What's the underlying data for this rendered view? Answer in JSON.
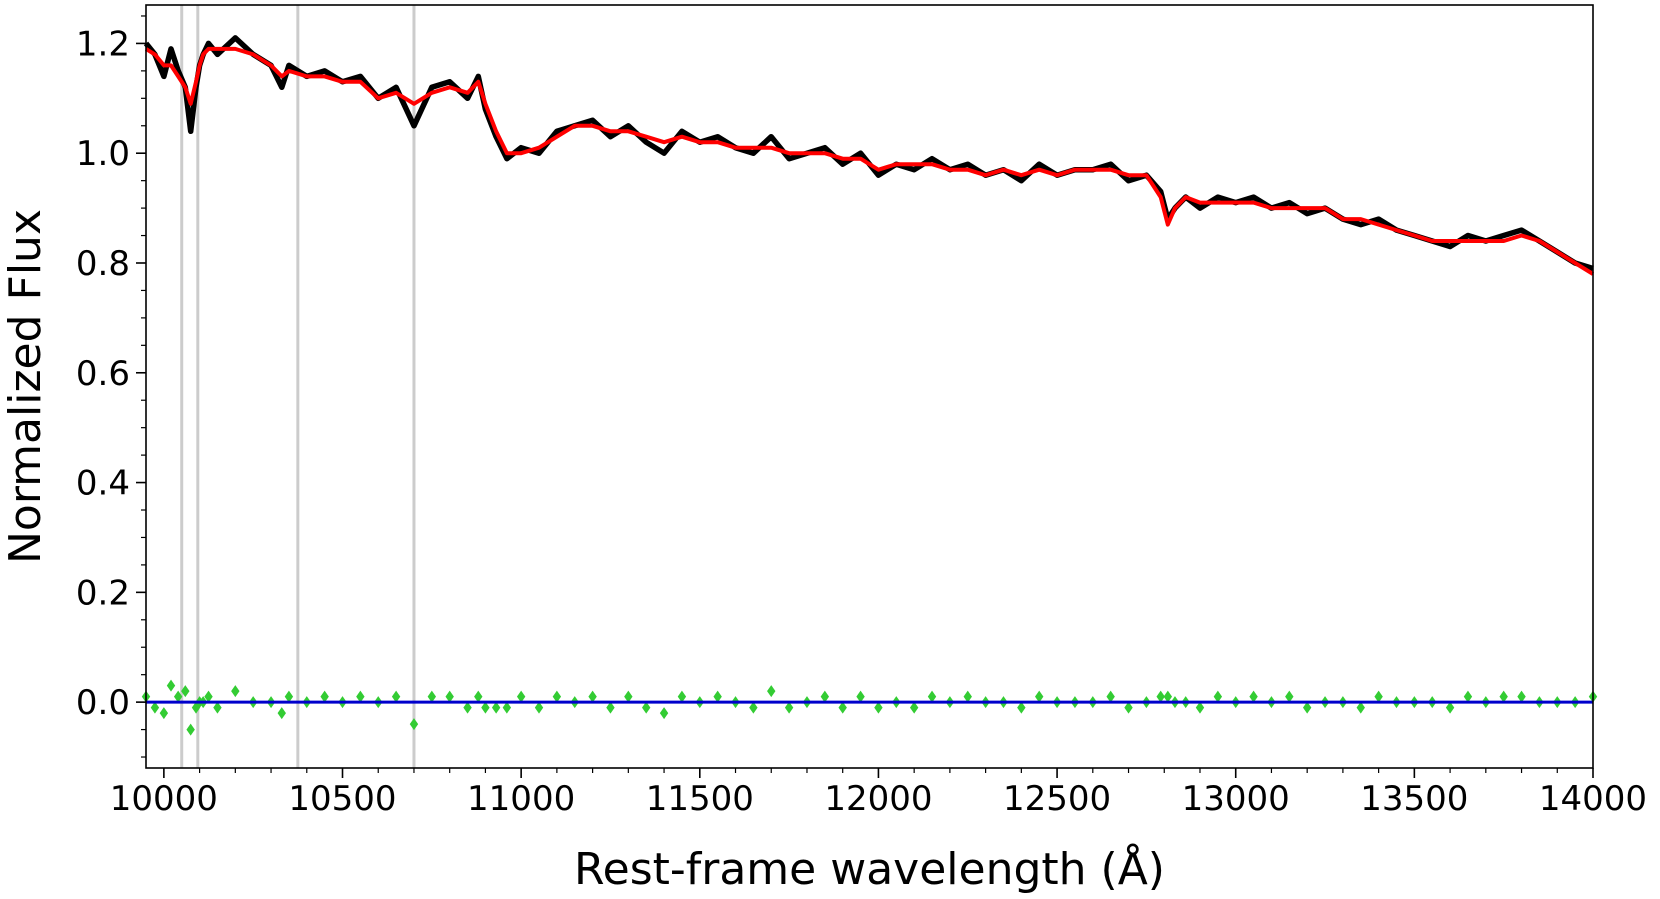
{
  "chart_data": {
    "type": "line",
    "xlabel": "Rest-frame wavelength (Å)",
    "ylabel": "Normalized Flux",
    "xlim": [
      9950,
      14000
    ],
    "ylim": [
      -0.12,
      1.27
    ],
    "x_ticks": [
      10000,
      10500,
      11000,
      11500,
      12000,
      12500,
      13000,
      13500,
      14000
    ],
    "x_tick_labels": [
      "10000",
      "10500",
      "11000",
      "11500",
      "12000",
      "12500",
      "13000",
      "13500",
      "14000"
    ],
    "y_ticks": [
      0.0,
      0.2,
      0.4,
      0.6,
      0.8,
      1.0,
      1.2
    ],
    "y_tick_labels": [
      "0.0",
      "0.2",
      "0.4",
      "0.6",
      "0.8",
      "1.0",
      "1.2"
    ],
    "grid": false,
    "vertical_lines": [
      10050,
      10095,
      10375,
      10700
    ],
    "series": [
      {
        "role": "observed",
        "color": "#000000",
        "style": "line",
        "x": [
          9950,
          9975,
          10000,
          10020,
          10040,
          10060,
          10075,
          10090,
          10100,
          10110,
          10125,
          10150,
          10200,
          10250,
          10300,
          10330,
          10350,
          10400,
          10450,
          10500,
          10550,
          10600,
          10650,
          10700,
          10750,
          10800,
          10850,
          10880,
          10900,
          10930,
          10960,
          11000,
          11050,
          11100,
          11150,
          11200,
          11250,
          11300,
          11350,
          11400,
          11450,
          11500,
          11550,
          11600,
          11650,
          11700,
          11750,
          11800,
          11850,
          11900,
          11950,
          12000,
          12050,
          12100,
          12150,
          12200,
          12250,
          12300,
          12350,
          12400,
          12450,
          12500,
          12550,
          12600,
          12650,
          12700,
          12750,
          12790,
          12810,
          12830,
          12860,
          12900,
          12950,
          13000,
          13050,
          13100,
          13150,
          13200,
          13250,
          13300,
          13350,
          13400,
          13450,
          13500,
          13550,
          13600,
          13650,
          13700,
          13750,
          13800,
          13850,
          13900,
          13950,
          14000
        ],
        "y": [
          1.2,
          1.18,
          1.14,
          1.19,
          1.15,
          1.12,
          1.04,
          1.12,
          1.16,
          1.18,
          1.2,
          1.18,
          1.21,
          1.18,
          1.16,
          1.12,
          1.16,
          1.14,
          1.15,
          1.13,
          1.14,
          1.1,
          1.12,
          1.05,
          1.12,
          1.13,
          1.1,
          1.14,
          1.08,
          1.03,
          0.99,
          1.01,
          1.0,
          1.04,
          1.05,
          1.06,
          1.03,
          1.05,
          1.02,
          1.0,
          1.04,
          1.02,
          1.03,
          1.01,
          1.0,
          1.03,
          0.99,
          1.0,
          1.01,
          0.98,
          1.0,
          0.96,
          0.98,
          0.97,
          0.99,
          0.97,
          0.98,
          0.96,
          0.97,
          0.95,
          0.98,
          0.96,
          0.97,
          0.97,
          0.98,
          0.95,
          0.96,
          0.93,
          0.88,
          0.9,
          0.92,
          0.9,
          0.92,
          0.91,
          0.92,
          0.9,
          0.91,
          0.89,
          0.9,
          0.88,
          0.87,
          0.88,
          0.86,
          0.85,
          0.84,
          0.83,
          0.85,
          0.84,
          0.85,
          0.86,
          0.84,
          0.82,
          0.8,
          0.79
        ]
      },
      {
        "role": "model",
        "color": "#ff0000",
        "style": "line",
        "x": [
          9950,
          9975,
          10000,
          10020,
          10040,
          10060,
          10075,
          10090,
          10100,
          10110,
          10125,
          10150,
          10200,
          10250,
          10300,
          10330,
          10350,
          10400,
          10450,
          10500,
          10550,
          10600,
          10650,
          10700,
          10750,
          10800,
          10850,
          10880,
          10900,
          10930,
          10960,
          11000,
          11050,
          11100,
          11150,
          11200,
          11250,
          11300,
          11350,
          11400,
          11450,
          11500,
          11550,
          11600,
          11650,
          11700,
          11750,
          11800,
          11850,
          11900,
          11950,
          12000,
          12050,
          12100,
          12150,
          12200,
          12250,
          12300,
          12350,
          12400,
          12450,
          12500,
          12550,
          12600,
          12650,
          12700,
          12750,
          12790,
          12810,
          12830,
          12860,
          12900,
          12950,
          13000,
          13050,
          13100,
          13150,
          13200,
          13250,
          13300,
          13350,
          13400,
          13450,
          13500,
          13550,
          13600,
          13650,
          13700,
          13750,
          13800,
          13850,
          13900,
          13950,
          14000
        ],
        "y": [
          1.19,
          1.18,
          1.16,
          1.16,
          1.14,
          1.12,
          1.09,
          1.13,
          1.16,
          1.18,
          1.19,
          1.19,
          1.19,
          1.18,
          1.16,
          1.14,
          1.15,
          1.14,
          1.14,
          1.13,
          1.13,
          1.1,
          1.11,
          1.09,
          1.11,
          1.12,
          1.11,
          1.13,
          1.09,
          1.04,
          1.0,
          1.0,
          1.01,
          1.03,
          1.05,
          1.05,
          1.04,
          1.04,
          1.03,
          1.02,
          1.03,
          1.02,
          1.02,
          1.01,
          1.01,
          1.01,
          1.0,
          1.0,
          1.0,
          0.99,
          0.99,
          0.97,
          0.98,
          0.98,
          0.98,
          0.97,
          0.97,
          0.96,
          0.97,
          0.96,
          0.97,
          0.96,
          0.97,
          0.97,
          0.97,
          0.96,
          0.96,
          0.92,
          0.87,
          0.9,
          0.92,
          0.91,
          0.91,
          0.91,
          0.91,
          0.9,
          0.9,
          0.9,
          0.9,
          0.88,
          0.88,
          0.87,
          0.86,
          0.85,
          0.84,
          0.84,
          0.84,
          0.84,
          0.84,
          0.85,
          0.84,
          0.82,
          0.8,
          0.78
        ]
      },
      {
        "role": "residuals",
        "color": "#33cc33",
        "style": "markers",
        "x": [
          9950,
          9975,
          10000,
          10020,
          10040,
          10060,
          10075,
          10090,
          10100,
          10110,
          10125,
          10150,
          10200,
          10250,
          10300,
          10330,
          10350,
          10400,
          10450,
          10500,
          10550,
          10600,
          10650,
          10700,
          10750,
          10800,
          10850,
          10880,
          10900,
          10930,
          10960,
          11000,
          11050,
          11100,
          11150,
          11200,
          11250,
          11300,
          11350,
          11400,
          11450,
          11500,
          11550,
          11600,
          11650,
          11700,
          11750,
          11800,
          11850,
          11900,
          11950,
          12000,
          12050,
          12100,
          12150,
          12200,
          12250,
          12300,
          12350,
          12400,
          12450,
          12500,
          12550,
          12600,
          12650,
          12700,
          12750,
          12790,
          12810,
          12830,
          12860,
          12900,
          12950,
          13000,
          13050,
          13100,
          13150,
          13200,
          13250,
          13300,
          13350,
          13400,
          13450,
          13500,
          13550,
          13600,
          13650,
          13700,
          13750,
          13800,
          13850,
          13900,
          13950,
          14000
        ],
        "y": [
          0.01,
          -0.01,
          -0.02,
          0.03,
          0.01,
          0.02,
          -0.05,
          -0.01,
          0.0,
          0.0,
          0.01,
          -0.01,
          0.02,
          0.0,
          0.0,
          -0.02,
          0.01,
          0.0,
          0.01,
          0.0,
          0.01,
          0.0,
          0.01,
          -0.04,
          0.01,
          0.01,
          -0.01,
          0.01,
          -0.01,
          -0.01,
          -0.01,
          0.01,
          -0.01,
          0.01,
          0.0,
          0.01,
          -0.01,
          0.01,
          -0.01,
          -0.02,
          0.01,
          0.0,
          0.01,
          0.0,
          -0.01,
          0.02,
          -0.01,
          0.0,
          0.01,
          -0.01,
          0.01,
          -0.01,
          0.0,
          -0.01,
          0.01,
          0.0,
          0.01,
          0.0,
          0.0,
          -0.01,
          0.01,
          0.0,
          0.0,
          0.0,
          0.01,
          -0.01,
          0.0,
          0.01,
          0.01,
          0.0,
          0.0,
          -0.01,
          0.01,
          0.0,
          0.01,
          0.0,
          0.01,
          -0.01,
          0.0,
          0.0,
          -0.01,
          0.01,
          0.0,
          0.0,
          0.0,
          -0.01,
          0.01,
          0.0,
          0.01,
          0.01,
          0.0,
          0.0,
          0.0,
          0.01
        ]
      },
      {
        "role": "zero-line",
        "color": "#0000cc",
        "style": "line",
        "x": [
          9950,
          14000
        ],
        "y": [
          0.0,
          0.0
        ]
      }
    ]
  }
}
